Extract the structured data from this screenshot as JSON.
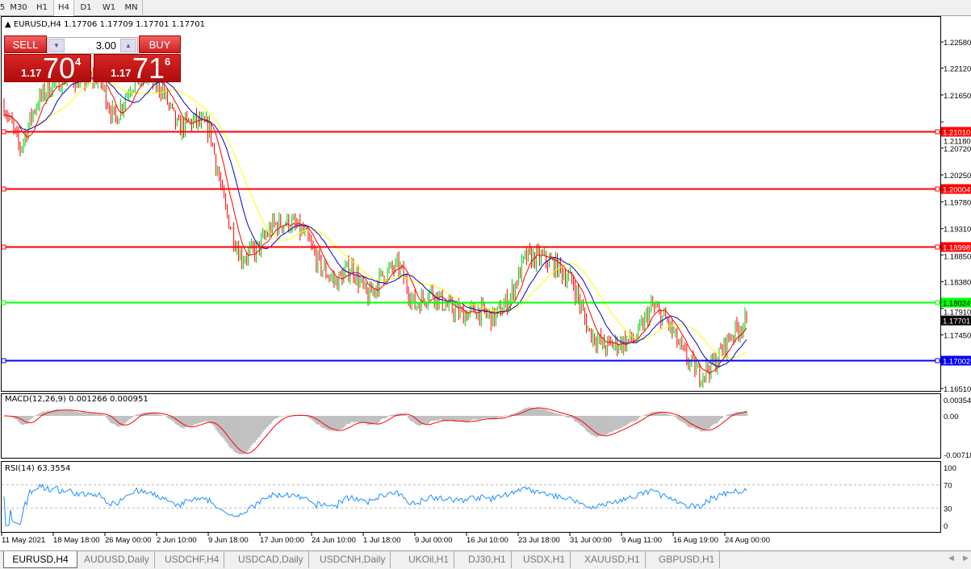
{
  "toolbar": {
    "timeframes": [
      "5",
      "M30",
      "H1",
      "H4",
      "D1",
      "W1",
      "MN"
    ],
    "active": "H4"
  },
  "symbol_line": "EURUSD,H4  1.17706 1.17709 1.17701 1.17701",
  "trade_panel": {
    "sell_label": "SELL",
    "buy_label": "BUY",
    "lot": "3.00",
    "sell_price": {
      "small": "1.17",
      "big": "70",
      "tiny": "4"
    },
    "buy_price": {
      "small": "1.17",
      "big": "71",
      "tiny": "6"
    }
  },
  "colors": {
    "bull": "#00c800",
    "bear": "#ff0000",
    "ma_fast": "#ff0000",
    "ma_mid": "#0000cc",
    "ma_slow": "#ffff00",
    "macd_hist": "#c0c0c0",
    "macd_signal": "#ff0000",
    "rsi": "#1e90ff"
  },
  "chart_data": {
    "type": "candlestick",
    "symbol": "EURUSD",
    "timeframe": "H4",
    "price_ticks": [
      "1.22580",
      "1.22120",
      "1.21650",
      "1.21180",
      "1.20720",
      "1.20250",
      "1.19780",
      "1.19310",
      "1.18850",
      "1.18380",
      "1.17910",
      "1.17450",
      "1.16510"
    ],
    "ylim": [
      1.1651,
      1.2258
    ],
    "date_ticks": [
      "11 May 2021",
      "18 May 18:00",
      "26 May 00:00",
      "2 Jun 10:00",
      "9 Jun 18:00",
      "17 Jun 00:00",
      "24 Jun 10:00",
      "1 Jul 18:00",
      "9 Jul 00:00",
      "16 Jul 10:00",
      "23 Jul 18:00",
      "31 Jul 00:00",
      "9 Aug 11:00",
      "16 Aug 19:00",
      "24 Aug 00:00"
    ],
    "close_path": [
      1.2148,
      1.207,
      1.2148,
      1.2183,
      1.2197,
      1.219,
      1.2197,
      1.212,
      1.2183,
      1.2197,
      1.2176,
      1.2106,
      1.212,
      1.2106,
      1.1964,
      1.188,
      1.1894,
      1.1936,
      1.1943,
      1.1922,
      1.1865,
      1.1837,
      1.1865,
      1.1809,
      1.1851,
      1.1865,
      1.1795,
      1.1823,
      1.1795,
      1.1781,
      1.1788,
      1.1774,
      1.1809,
      1.188,
      1.188,
      1.1865,
      1.1837,
      1.1752,
      1.1724,
      1.1731,
      1.1738,
      1.1795,
      1.1767,
      1.171,
      1.1675,
      1.1696,
      1.1745,
      1.177
    ],
    "hlines": [
      {
        "price": "1.21010",
        "color": "#ff0000"
      },
      {
        "price": "1.20004",
        "color": "#ff0000"
      },
      {
        "price": "1.18998",
        "color": "#ff0000"
      },
      {
        "price": "1.18024",
        "color": "#00ff00"
      },
      {
        "price": "1.17002",
        "color": "#0000ff"
      }
    ],
    "current_price": "1.17701",
    "macd": {
      "label": "MACD(12,26,9) 0.001266 0.000951",
      "ticks": [
        "0.003547",
        "0.00",
        "-0.00718"
      ],
      "ylim": [
        -0.00718,
        0.003547
      ]
    },
    "rsi": {
      "label": "RSI(14) 63.3554",
      "ticks": [
        "100",
        "70",
        "30",
        "0"
      ],
      "levels": [
        70,
        30
      ]
    }
  },
  "tabs": [
    "EURUSD,H4",
    "AUDUSD,Daily",
    "USDCHF,H4",
    "USDCAD,Daily",
    "USDCNH,Daily",
    "UKOil,H1",
    "DJ30,H1",
    "USDX,H1",
    "XAUUSD,H1",
    "GBPUSD,H1"
  ],
  "active_tab": "EURUSD,H4"
}
